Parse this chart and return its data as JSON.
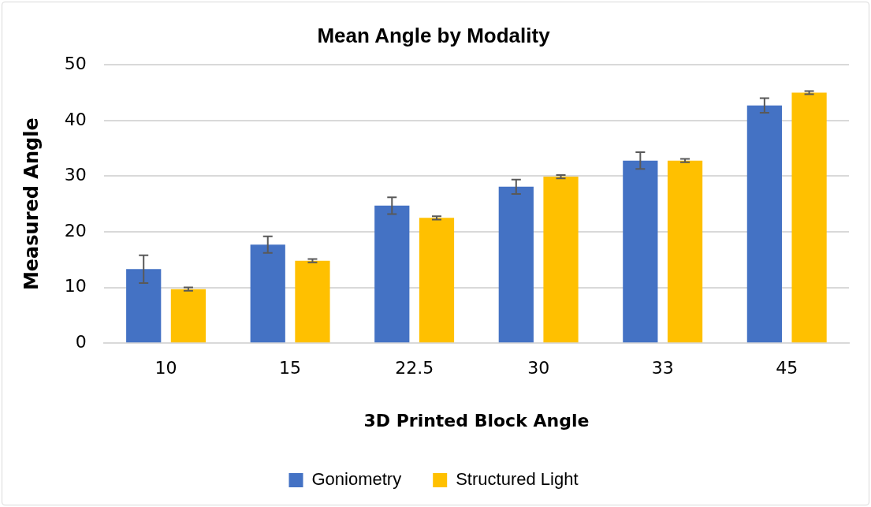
{
  "chart_data": {
    "type": "bar",
    "title": "Mean Angle by Modality",
    "xlabel": "3D Printed Block Angle",
    "ylabel": "Measured Angle",
    "categories": [
      "10",
      "15",
      "22.5",
      "30",
      "33",
      "45"
    ],
    "series": [
      {
        "name": "Goniometry",
        "color": "#4472c4",
        "values": [
          13.3,
          17.7,
          24.7,
          28.1,
          32.8,
          42.7
        ],
        "errors": [
          2.5,
          1.5,
          1.5,
          1.3,
          1.5,
          1.3
        ]
      },
      {
        "name": "Structured Light",
        "color": "#ffc000",
        "values": [
          9.7,
          14.8,
          22.5,
          29.9,
          32.8,
          45.0
        ],
        "errors": [
          0.3,
          0.3,
          0.3,
          0.3,
          0.3,
          0.3
        ]
      }
    ],
    "ylim": [
      0,
      50
    ],
    "yticks": [
      0,
      10,
      20,
      30,
      40,
      50
    ],
    "grid": "y",
    "legend": "bottom"
  }
}
